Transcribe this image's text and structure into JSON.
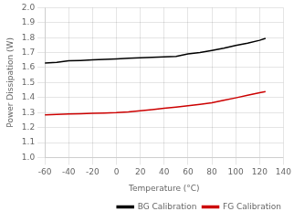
{
  "chart_data": {
    "type": "line",
    "xlabel": "Temperature (°C)",
    "ylabel": "Power Dissipation (W)",
    "x": [
      -60,
      -50,
      -40,
      -30,
      -20,
      -10,
      0,
      10,
      20,
      30,
      40,
      50,
      60,
      70,
      80,
      90,
      100,
      110,
      120,
      125
    ],
    "series": [
      {
        "name": "BG Calibration",
        "color": "#000000",
        "values": [
          1.63,
          1.635,
          1.645,
          1.648,
          1.652,
          1.655,
          1.658,
          1.662,
          1.665,
          1.668,
          1.672,
          1.675,
          1.692,
          1.7,
          1.715,
          1.73,
          1.748,
          1.763,
          1.782,
          1.795
        ]
      },
      {
        "name": "FG Calibration",
        "color": "#cc0000",
        "values": [
          1.285,
          1.288,
          1.29,
          1.292,
          1.295,
          1.297,
          1.3,
          1.305,
          1.312,
          1.32,
          1.328,
          1.336,
          1.345,
          1.355,
          1.365,
          1.382,
          1.398,
          1.415,
          1.432,
          1.44
        ]
      }
    ],
    "xlim": [
      -60,
      140
    ],
    "ylim": [
      1.0,
      2.0
    ],
    "xticks": [
      -60,
      -40,
      -20,
      0,
      20,
      40,
      60,
      80,
      100,
      120,
      140
    ],
    "yticks": [
      {
        "value": 1.0,
        "label": "1.0"
      },
      1.1,
      1.2,
      1.3,
      1.4,
      1.5,
      1.6,
      1.7,
      1.8,
      1.9,
      {
        "value": 2.0,
        "label": "2.0"
      }
    ],
    "grid": true,
    "legend": "lower right"
  }
}
